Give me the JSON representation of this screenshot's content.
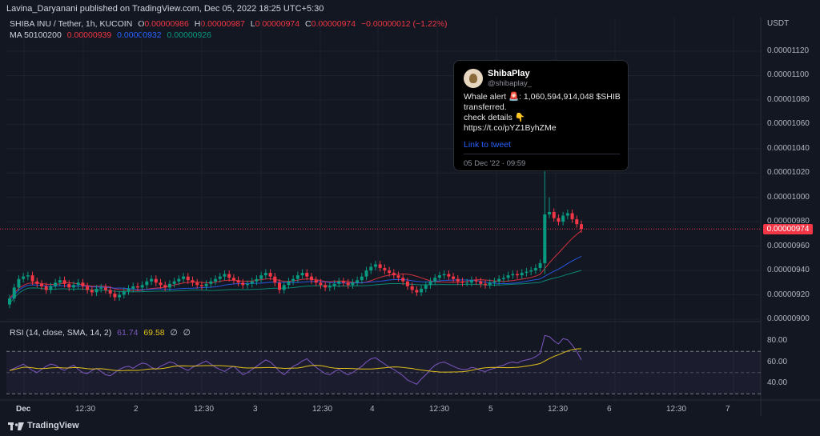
{
  "publish_line": "Lavina_Daryanani published on TradingView.com, Dec 05, 2022 18:25 UTC+5:30",
  "symbol": {
    "name": "SHIBA INU / Tether, 1h, KUCOIN",
    "o_label": "O",
    "o": "0.00000986",
    "h_label": "H",
    "h": "0.00000987",
    "l_label": "L",
    "l": "0.00000974",
    "c_label": "C",
    "c": "0.00000974",
    "change": "−0.00000012 (−1.22%)"
  },
  "ma": {
    "label": "MA 50100200",
    "v1": "0.00000939",
    "v2": "0.00000932",
    "v3": "0.00000926"
  },
  "rsi": {
    "label": "RSI (14, close, SMA, 14, 2)",
    "v1": "61.74",
    "v2": "69.58",
    "n1": "∅",
    "n2": "∅"
  },
  "currency": "USDT",
  "last_price_tag": "0.00000974",
  "tweet": {
    "name": "ShibaPlay",
    "handle": "@shibaplay_",
    "line1": "Whale alert 🚨: 1,060,594,914,048 $SHIB",
    "line2": "transferred.",
    "line3": "check details 👇",
    "line4": "https://t.co/pYZ1ByhZMe",
    "link": "Link to tweet",
    "date": "05 Dec '22 · 09:59"
  },
  "brand": "TradingView",
  "colors": {
    "up": "#089981",
    "down": "#f23645",
    "ma50": "#f23645",
    "ma100": "#2962ff",
    "ma200": "#089981",
    "rsi": "#7e57c2",
    "rsi_ma": "#e3c21a"
  },
  "chart_data": {
    "type": "candlestick",
    "price_axis_ticks": [
      "0.00001120",
      "0.00001100",
      "0.00001080",
      "0.00001060",
      "0.00001040",
      "0.00001020",
      "0.00001000",
      "0.00000980",
      "0.00000960",
      "0.00000940",
      "0.00000920",
      "0.00000900"
    ],
    "rsi_axis_ticks": [
      "80.00",
      "60.00",
      "40.00"
    ],
    "x_ticks": [
      "Dec",
      "12:30",
      "2",
      "12:30",
      "3",
      "12:30",
      "4",
      "12:30",
      "5",
      "12:30",
      "6",
      "12:30",
      "7"
    ],
    "ylim": [
      9e-06,
      1.13e-05
    ],
    "rsi_ylim": [
      30,
      90
    ],
    "close": [
      9.17,
      9.26,
      9.33,
      9.35,
      9.36,
      9.31,
      9.29,
      9.27,
      9.24,
      9.27,
      9.3,
      9.32,
      9.29,
      9.26,
      9.28,
      9.3,
      9.27,
      9.24,
      9.22,
      9.25,
      9.26,
      9.24,
      9.21,
      9.18,
      9.2,
      9.23,
      9.25,
      9.27,
      9.26,
      9.28,
      9.31,
      9.33,
      9.3,
      9.28,
      9.26,
      9.29,
      9.31,
      9.33,
      9.35,
      9.32,
      9.3,
      9.28,
      9.27,
      9.29,
      9.31,
      9.33,
      9.35,
      9.37,
      9.34,
      9.32,
      9.3,
      9.28,
      9.29,
      9.31,
      9.33,
      9.36,
      9.38,
      9.35,
      9.3,
      9.24,
      9.28,
      9.31,
      9.33,
      9.36,
      9.38,
      9.35,
      9.32,
      9.3,
      9.28,
      9.26,
      9.27,
      9.29,
      9.31,
      9.3,
      9.28,
      9.3,
      9.32,
      9.35,
      9.4,
      9.43,
      9.45,
      9.42,
      9.4,
      9.38,
      9.36,
      9.34,
      9.31,
      9.27,
      9.24,
      9.22,
      9.25,
      9.28,
      9.31,
      9.34,
      9.36,
      9.37,
      9.35,
      9.33,
      9.31,
      9.3,
      9.3,
      9.32,
      9.31,
      9.29,
      9.28,
      9.3,
      9.31,
      9.33,
      9.34,
      9.36,
      9.37,
      9.36,
      9.38,
      9.39,
      9.4,
      9.42,
      9.46,
      9.86,
      9.88,
      9.83,
      9.8,
      9.85,
      9.87,
      9.82,
      9.78,
      9.74
    ],
    "rsi": [
      52,
      54,
      56,
      58,
      55,
      52,
      50,
      53,
      56,
      58,
      57,
      54,
      52,
      55,
      57,
      53,
      50,
      49,
      52,
      54,
      51,
      48,
      47,
      50,
      53,
      55,
      56,
      54,
      57,
      59,
      58,
      55,
      53,
      56,
      58,
      60,
      59,
      56,
      54,
      52,
      55,
      57,
      59,
      61,
      58,
      55,
      53,
      51,
      54,
      56,
      52,
      48,
      50,
      53,
      56,
      59,
      62,
      60,
      56,
      51,
      48,
      52,
      56,
      58,
      61,
      63,
      59,
      55,
      52,
      49,
      48,
      51,
      53,
      50,
      48,
      50,
      53,
      56,
      60,
      63,
      64,
      61,
      58,
      55,
      53,
      50,
      47,
      43,
      41,
      39,
      44,
      48,
      53,
      57,
      59,
      60,
      58,
      56,
      54,
      53,
      53,
      55,
      54,
      52,
      51,
      53,
      54,
      56,
      57,
      59,
      60,
      59,
      61,
      62,
      63,
      65,
      68,
      85,
      84,
      80,
      77,
      82,
      81,
      76,
      70,
      62
    ]
  }
}
